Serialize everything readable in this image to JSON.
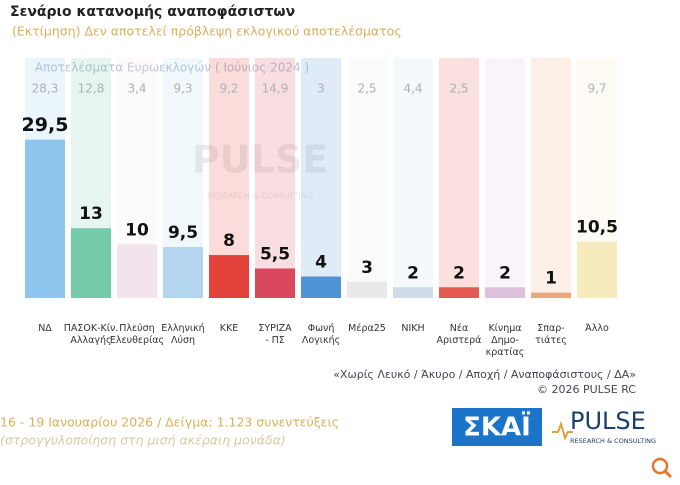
{
  "chart_data": {
    "type": "bar",
    "title": "Σενάριο κατανομής αναποφάσιστων",
    "subtitle": "(Εκτίμηση)   Δεν αποτελεί πρόβλεψη εκλογικού αποτελέσματος",
    "categories": [
      [
        "ΝΔ"
      ],
      [
        "ΠΑΣΟΚ-Κίν.",
        "Αλλαγής"
      ],
      [
        "Πλεύση",
        "Ελευθερίας"
      ],
      [
        "Ελληνική",
        "Λύση"
      ],
      [
        "ΚΚΕ"
      ],
      [
        "ΣΥΡΙΖΑ",
        "- ΠΣ"
      ],
      [
        "Φωνή",
        "Λογικής"
      ],
      [
        "Μέρα25"
      ],
      [
        "ΝΙΚΗ"
      ],
      [
        "Νέα",
        "Αριστερά"
      ],
      [
        "Κίνημα",
        "Δημο-",
        "κρατίας"
      ],
      [
        "Σπαρ-",
        "τιάτες"
      ],
      [
        "Άλλο"
      ]
    ],
    "series": [
      {
        "name": "Σενάριο κατανομής αναποφάσιστων",
        "values": [
          29.5,
          13,
          10,
          9.5,
          8,
          5.5,
          4,
          3,
          2,
          2,
          2,
          1,
          10.5
        ],
        "value_labels": [
          "29,5",
          "13",
          "10",
          "9,5",
          "8",
          "5,5",
          "4",
          "3",
          "2",
          "2",
          "2",
          "1",
          "10,5"
        ],
        "colors": [
          "#8fc6ef",
          "#74c9a8",
          "#f3e3ec",
          "#b3d6ee",
          "#e2423a",
          "#d9485e",
          "#4f94d4",
          "#e9e9e9",
          "#cfdbe8",
          "#e45a50",
          "#dcc0dc",
          "#e8a878",
          "#f6ebbd"
        ]
      },
      {
        "name": "Αποτελέσματα Ευρωεκλογών ( Ιούνιος 2024 )",
        "values": [
          28.3,
          12.8,
          3.4,
          9.3,
          9.2,
          14.9,
          3,
          2.5,
          4.4,
          2.5,
          null,
          null,
          9.7
        ],
        "value_labels": [
          "28,3",
          "12,8",
          "3,4",
          "9,3",
          "9,2",
          "14,9",
          "3",
          "2,5",
          "4,4",
          "2,5",
          null,
          null,
          "9,7"
        ]
      }
    ],
    "ylim": [
      0,
      30
    ],
    "note": "«Χωρίς Λευκό / Άκυρο / Αποχή / Αναποφάσιστους / ΔΑ»",
    "copyright": "©  2026  PULSE RC",
    "fieldwork": "16 - 19 Ιανουαρίου 2026  /  Δείγμα:  1.123 συνεντεύξεις",
    "rounding": "(στρογγυλοποίηση στη μισή ακέραιη μονάδα)",
    "logo_skai": "ΣΚΑΪ",
    "logo_pulse": "PULSE",
    "logo_pulse_sub": "RESEARCH & CONSULTING"
  }
}
